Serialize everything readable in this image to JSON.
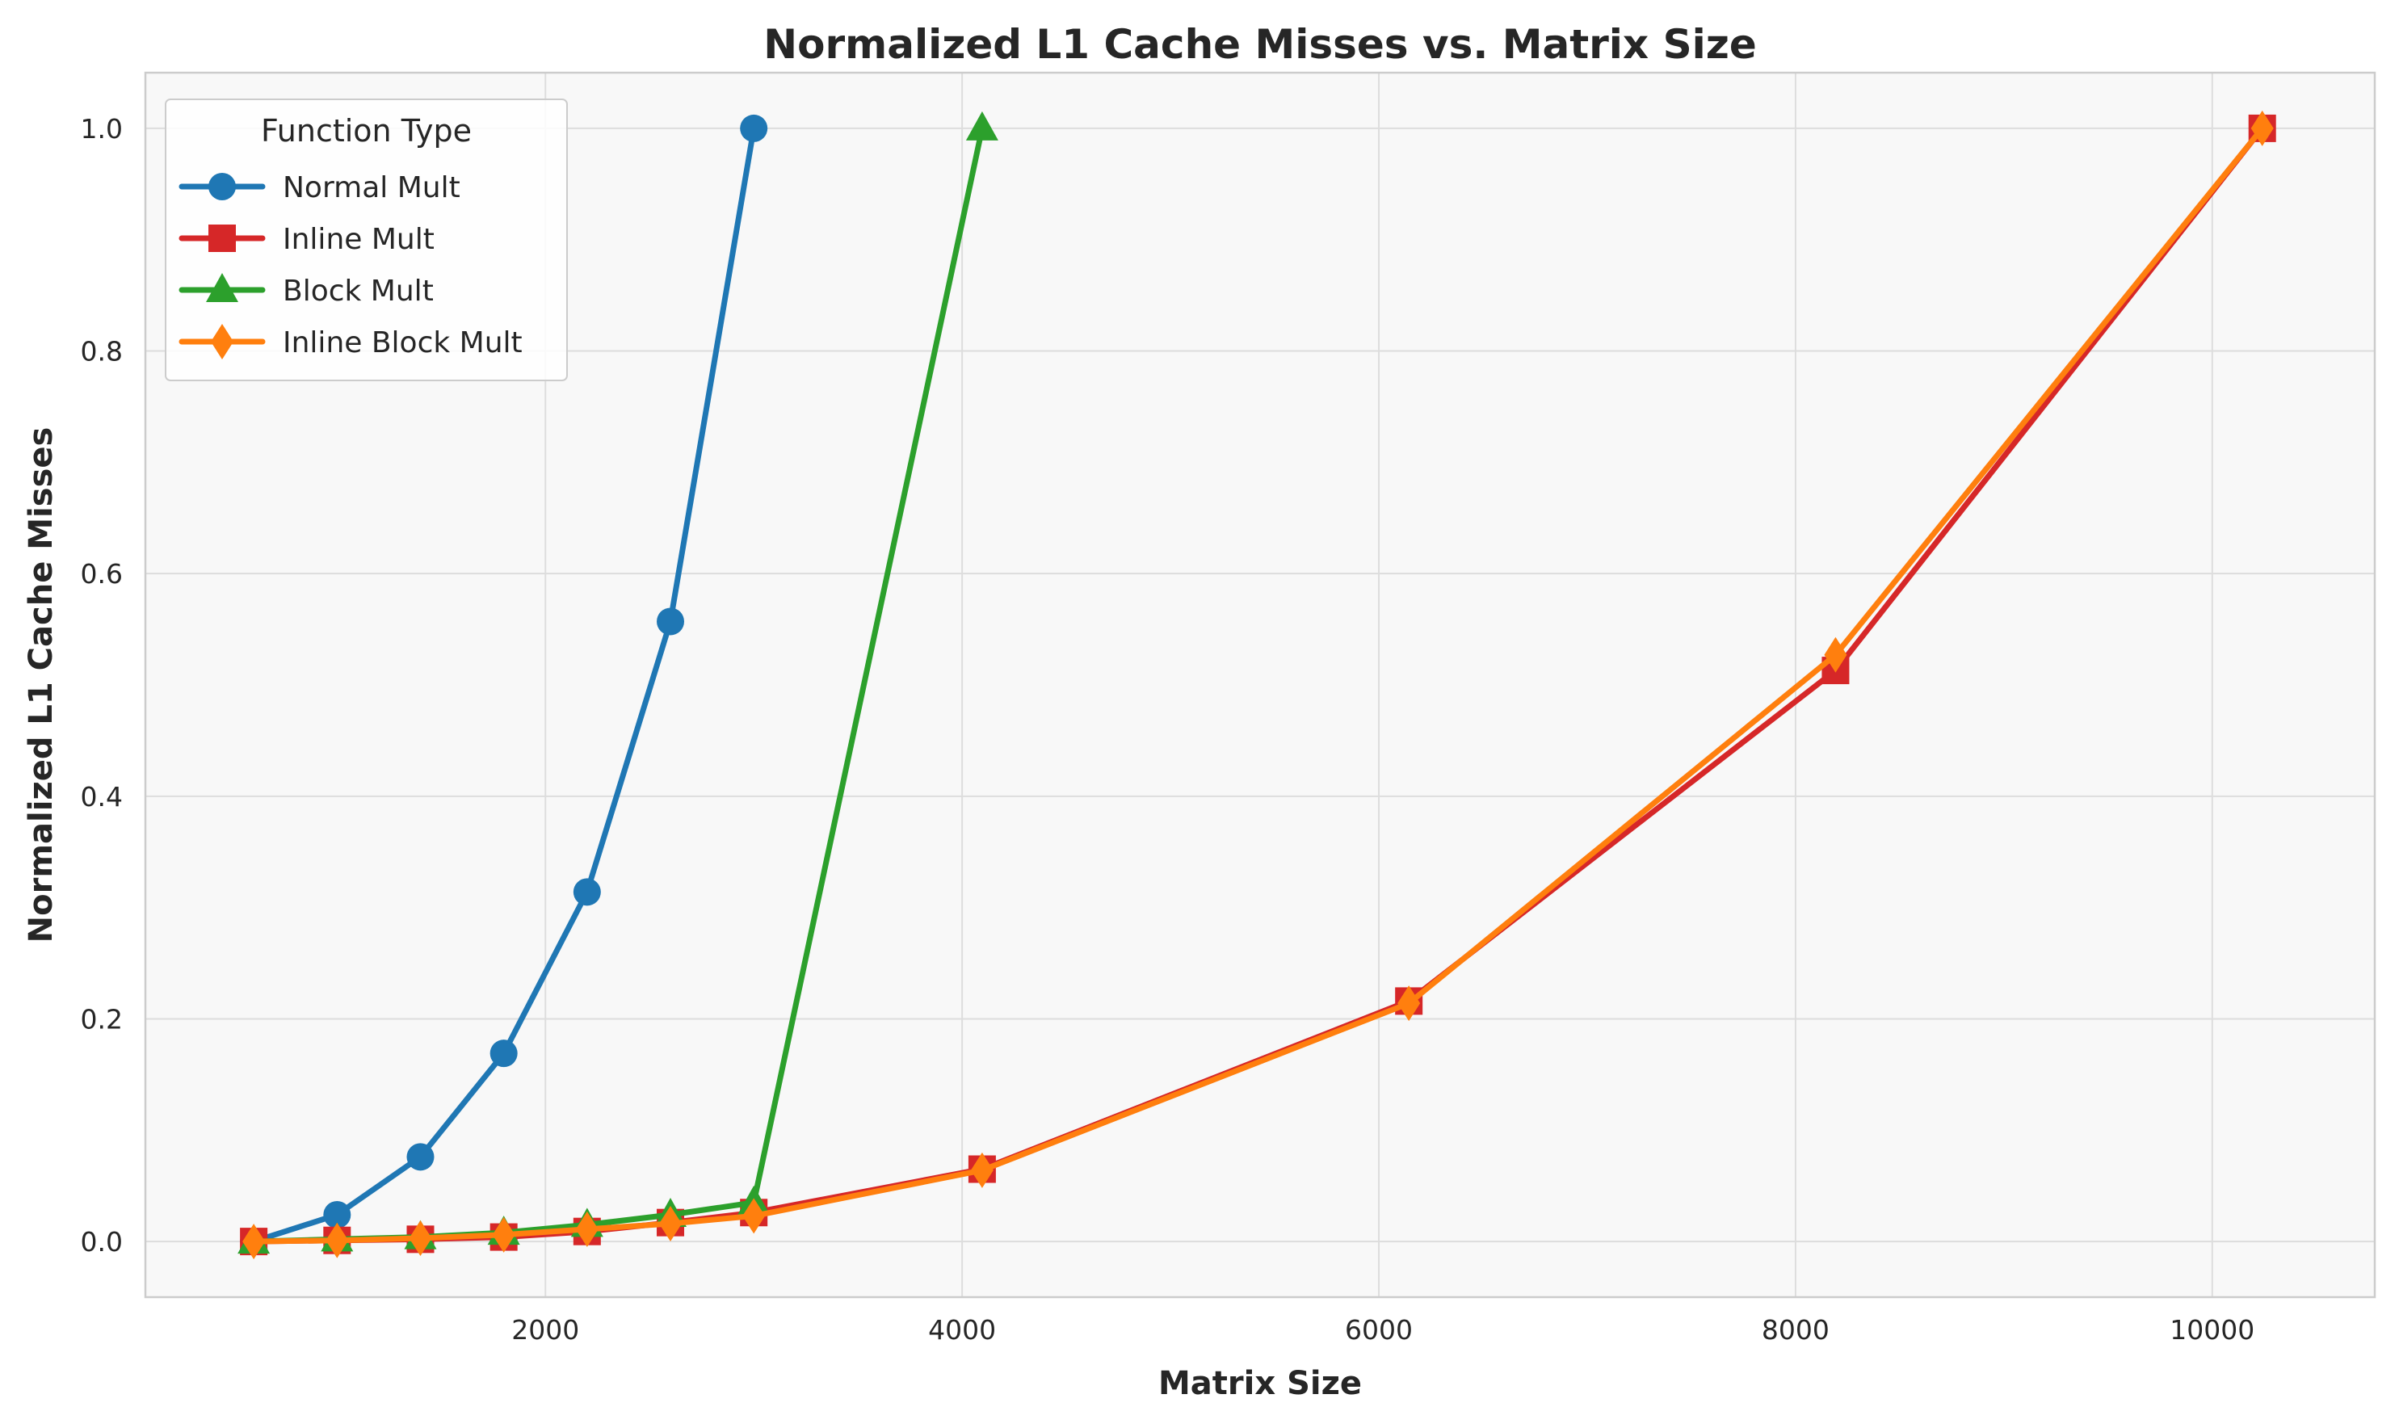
{
  "chart_data": {
    "type": "line",
    "title": "Normalized L1 Cache Misses vs. Matrix Size",
    "xlabel": "Matrix Size",
    "ylabel": "Normalized L1 Cache Misses",
    "xlim": [
      80,
      10780
    ],
    "ylim": [
      -0.05,
      1.05
    ],
    "xticks": [
      2000,
      4000,
      6000,
      8000,
      10000
    ],
    "yticks": [
      0.0,
      0.2,
      0.4,
      0.6,
      0.8,
      1.0
    ],
    "xtick_labels": [
      "2000",
      "4000",
      "6000",
      "8000",
      "10000"
    ],
    "ytick_labels": [
      "0.0",
      "0.2",
      "0.4",
      "0.6",
      "0.8",
      "1.0"
    ],
    "grid": true,
    "legend": {
      "title": "Function Type",
      "position": "top-left"
    },
    "series": [
      {
        "name": "Normal Mult",
        "color": "#1f77b4",
        "marker": "circle",
        "x": [
          600,
          1000,
          1400,
          1800,
          2200,
          2600,
          3000
        ],
        "y": [
          0.0,
          0.024,
          0.076,
          0.169,
          0.314,
          0.557,
          1.0
        ]
      },
      {
        "name": "Inline Mult",
        "color": "#d62728",
        "marker": "square",
        "x": [
          600,
          1000,
          1400,
          1800,
          2200,
          2600,
          3000,
          4096,
          6144,
          8192,
          10240
        ],
        "y": [
          0.0,
          0.001,
          0.002,
          0.004,
          0.009,
          0.017,
          0.026,
          0.065,
          0.216,
          0.513,
          1.0
        ]
      },
      {
        "name": "Block Mult",
        "color": "#2ca02c",
        "marker": "triangle",
        "x": [
          600,
          1000,
          1400,
          1800,
          2200,
          2600,
          3000,
          4096
        ],
        "y": [
          0.0,
          0.002,
          0.004,
          0.008,
          0.015,
          0.024,
          0.035,
          1.0
        ]
      },
      {
        "name": "Inline Block Mult",
        "color": "#ff7f0e",
        "marker": "diamond",
        "x": [
          600,
          1000,
          1400,
          1800,
          2200,
          2600,
          3000,
          4096,
          6144,
          8192,
          10240
        ],
        "y": [
          0.0,
          0.001,
          0.003,
          0.006,
          0.011,
          0.016,
          0.023,
          0.064,
          0.214,
          0.527,
          1.0
        ]
      }
    ]
  }
}
